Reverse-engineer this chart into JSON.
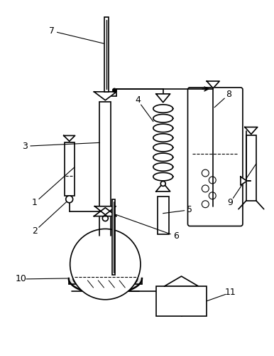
{
  "bg_color": "#ffffff",
  "lc": "#000000",
  "lw": 1.2,
  "fig_w": 3.86,
  "fig_h": 5.0,
  "dpi": 100
}
